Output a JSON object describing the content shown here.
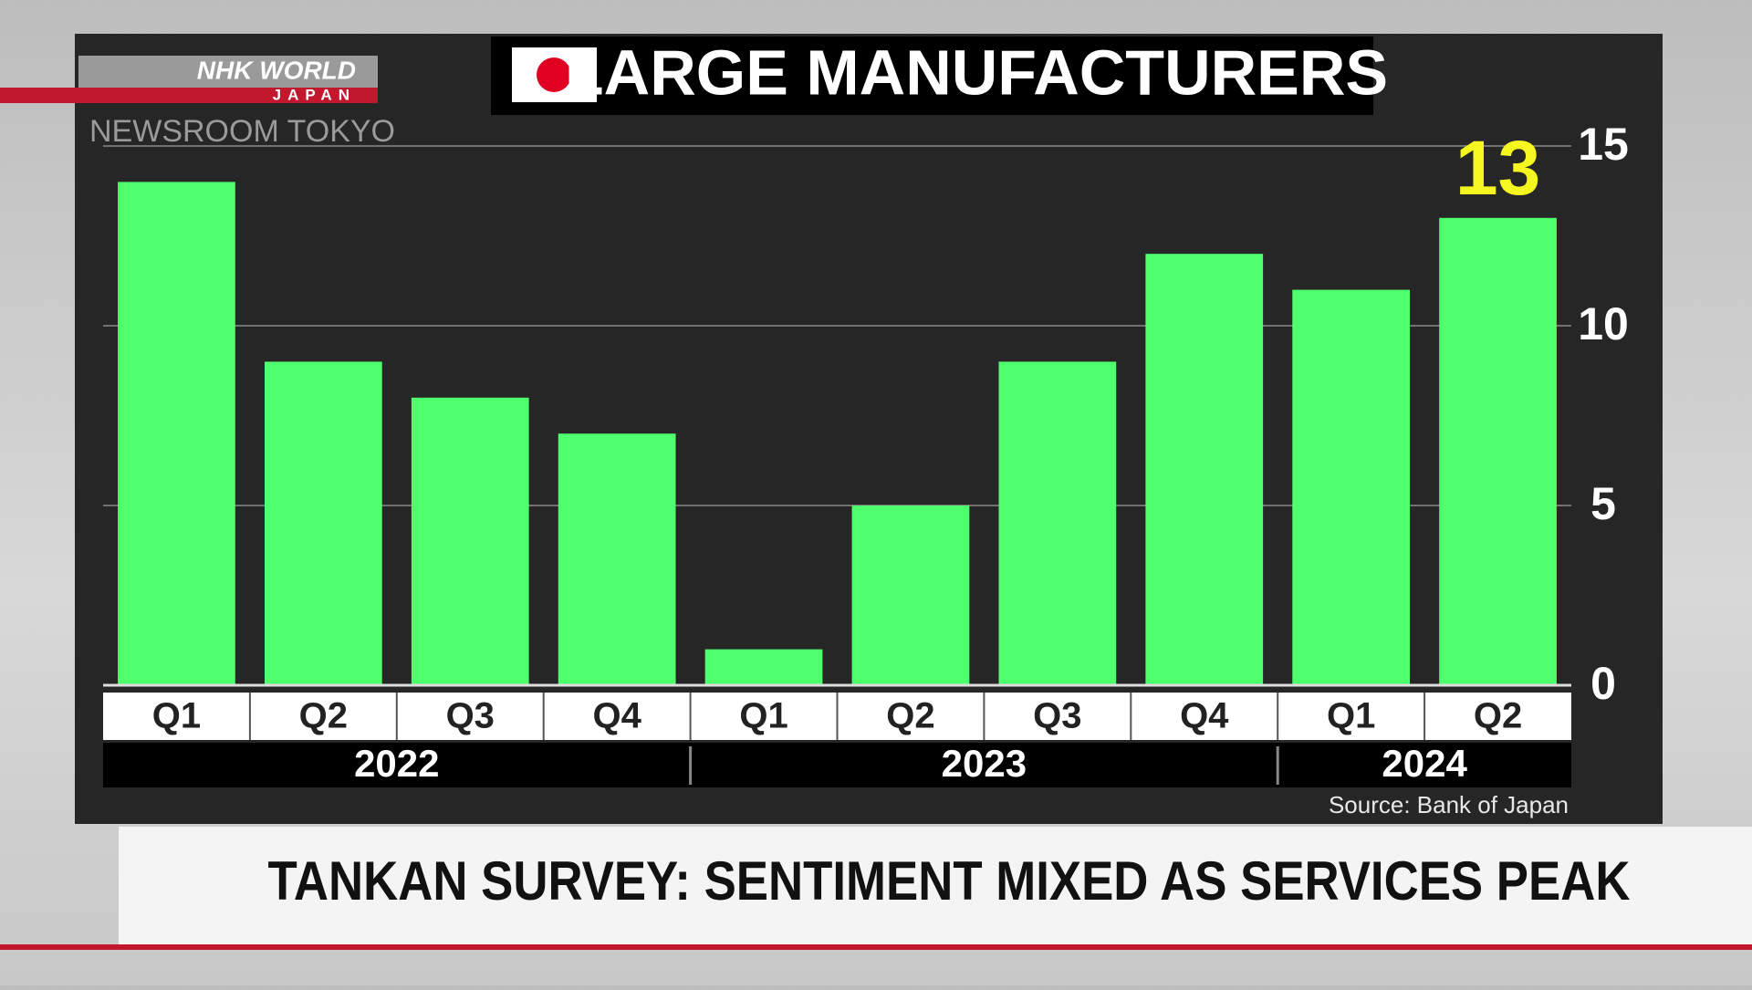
{
  "channel": {
    "logo": "NHK WORLD",
    "logo_sub": "JAPAN",
    "program": "NEWSROOM TOKYO"
  },
  "chart_data": {
    "type": "bar",
    "title": "LARGE MANUFACTURERS",
    "groups": [
      {
        "label": "2022",
        "categories": [
          "Q1",
          "Q2",
          "Q3",
          "Q4"
        ],
        "values": [
          14,
          9,
          8,
          7
        ],
        "value_labels": [
          null,
          null,
          null,
          null
        ]
      },
      {
        "label": "2023",
        "categories": [
          "Q1",
          "Q2",
          "Q3",
          "Q4"
        ],
        "values": [
          1,
          5,
          9,
          12
        ],
        "value_labels": [
          null,
          null,
          null,
          null
        ]
      },
      {
        "label": "2024",
        "categories": [
          "Q1",
          "Q2"
        ],
        "values": [
          11,
          13
        ],
        "value_labels": [
          null,
          13
        ]
      }
    ],
    "color": "#4eff6e",
    "value_label_color": "#f5f520",
    "ylim": [
      0,
      15
    ],
    "yticks": [
      0,
      5,
      10,
      15
    ],
    "grid": true,
    "source": "Source: Bank of Japan"
  },
  "headline": "TANKAN SURVEY: SENTIMENT MIXED AS SERVICES PEAK"
}
